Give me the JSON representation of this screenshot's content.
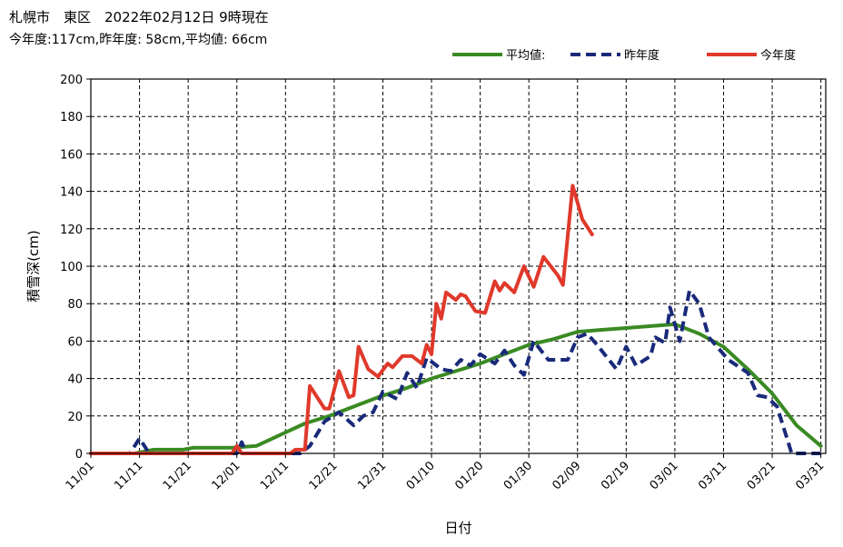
{
  "header": {
    "title": "札幌市　東区　2022年02月12日 9時現在",
    "summary": "今年度:117cm,昨年度: 58cm,平均値: 66cm"
  },
  "chart_data": {
    "type": "line",
    "title": "札幌市　東区　2022年02月12日 9時現在",
    "xlabel": "日付",
    "ylabel": "積雪深(cm)",
    "ylim": [
      0,
      200
    ],
    "yticks": [
      0,
      20,
      40,
      60,
      80,
      100,
      120,
      140,
      160,
      180,
      200
    ],
    "xlim": [
      "11/01",
      "04/01"
    ],
    "xticks": [
      "11/01",
      "11/11",
      "11/21",
      "12/01",
      "12/11",
      "12/21",
      "12/31",
      "01/10",
      "01/20",
      "01/30",
      "02/09",
      "02/19",
      "03/01",
      "03/11",
      "03/21",
      "03/31"
    ],
    "grid": true,
    "legend_position": "top-right",
    "series": [
      {
        "name": "平均値:",
        "color": "#3a8a23",
        "style": "solid",
        "points": [
          [
            "11/01",
            0
          ],
          [
            "11/10",
            0
          ],
          [
            "11/14",
            2
          ],
          [
            "11/20",
            2
          ],
          [
            "11/22",
            3
          ],
          [
            "11/30",
            3
          ],
          [
            "12/05",
            4
          ],
          [
            "12/10",
            10
          ],
          [
            "12/15",
            16
          ],
          [
            "12/20",
            20
          ],
          [
            "12/25",
            25
          ],
          [
            "12/30",
            30
          ],
          [
            "01/05",
            35
          ],
          [
            "01/10",
            40
          ],
          [
            "01/15",
            44
          ],
          [
            "01/20",
            48
          ],
          [
            "01/25",
            53
          ],
          [
            "01/30",
            58
          ],
          [
            "02/04",
            61
          ],
          [
            "02/09",
            65
          ],
          [
            "02/14",
            66
          ],
          [
            "02/19",
            67
          ],
          [
            "02/24",
            68
          ],
          [
            "03/01",
            69
          ],
          [
            "03/06",
            64
          ],
          [
            "03/11",
            57
          ],
          [
            "03/16",
            45
          ],
          [
            "03/21",
            32
          ],
          [
            "03/26",
            15
          ],
          [
            "03/31",
            4
          ]
        ]
      },
      {
        "name": "昨年度",
        "color": "#1a2a7a",
        "style": "dashed",
        "points": [
          [
            "11/01",
            0
          ],
          [
            "11/09",
            0
          ],
          [
            "11/11",
            8
          ],
          [
            "11/13",
            0
          ],
          [
            "12/01",
            0
          ],
          [
            "12/02",
            6
          ],
          [
            "12/03",
            0
          ],
          [
            "12/14",
            0
          ],
          [
            "12/16",
            4
          ],
          [
            "12/19",
            17
          ],
          [
            "12/22",
            22
          ],
          [
            "12/25",
            15
          ],
          [
            "12/27",
            20
          ],
          [
            "12/29",
            22
          ],
          [
            "12/31",
            33
          ],
          [
            "01/03",
            29
          ],
          [
            "01/05",
            43
          ],
          [
            "01/07",
            35
          ],
          [
            "01/09",
            51
          ],
          [
            "01/12",
            45
          ],
          [
            "01/14",
            44
          ],
          [
            "01/16",
            50
          ],
          [
            "01/18",
            47
          ],
          [
            "01/20",
            53
          ],
          [
            "01/23",
            48
          ],
          [
            "01/25",
            55
          ],
          [
            "01/27",
            47
          ],
          [
            "01/29",
            42
          ],
          [
            "01/31",
            60
          ],
          [
            "02/03",
            50
          ],
          [
            "02/07",
            50
          ],
          [
            "02/09",
            62
          ],
          [
            "02/11",
            64
          ],
          [
            "02/13",
            58
          ],
          [
            "02/17",
            45
          ],
          [
            "02/19",
            57
          ],
          [
            "02/21",
            47
          ],
          [
            "02/24",
            52
          ],
          [
            "02/25",
            62
          ],
          [
            "02/27",
            59
          ],
          [
            "02/28",
            78
          ],
          [
            "03/02",
            60
          ],
          [
            "03/04",
            87
          ],
          [
            "03/06",
            80
          ],
          [
            "03/08",
            62
          ],
          [
            "03/12",
            50
          ],
          [
            "03/16",
            43
          ],
          [
            "03/18",
            31
          ],
          [
            "03/20",
            30
          ],
          [
            "03/22",
            25
          ],
          [
            "03/25",
            0
          ],
          [
            "03/31",
            0
          ]
        ]
      },
      {
        "name": "今年度",
        "color": "#e0392b",
        "style": "solid",
        "points": [
          [
            "11/01",
            0
          ],
          [
            "11/30",
            0
          ],
          [
            "12/01",
            4
          ],
          [
            "12/02",
            0
          ],
          [
            "12/12",
            0
          ],
          [
            "12/13",
            2
          ],
          [
            "12/15",
            2
          ],
          [
            "12/16",
            36
          ],
          [
            "12/19",
            24
          ],
          [
            "12/20",
            24
          ],
          [
            "12/22",
            44
          ],
          [
            "12/24",
            30
          ],
          [
            "12/25",
            31
          ],
          [
            "12/26",
            57
          ],
          [
            "12/28",
            45
          ],
          [
            "12/30",
            41
          ],
          [
            "01/01",
            48
          ],
          [
            "01/02",
            46
          ],
          [
            "01/04",
            52
          ],
          [
            "01/06",
            52
          ],
          [
            "01/08",
            48
          ],
          [
            "01/09",
            58
          ],
          [
            "01/10",
            53
          ],
          [
            "01/11",
            80
          ],
          [
            "01/12",
            72
          ],
          [
            "01/13",
            86
          ],
          [
            "01/14",
            84
          ],
          [
            "01/15",
            82
          ],
          [
            "01/16",
            85
          ],
          [
            "01/17",
            84
          ],
          [
            "01/19",
            76
          ],
          [
            "01/21",
            75
          ],
          [
            "01/23",
            92
          ],
          [
            "01/24",
            87
          ],
          [
            "01/25",
            91
          ],
          [
            "01/27",
            86
          ],
          [
            "01/29",
            100
          ],
          [
            "01/31",
            89
          ],
          [
            "02/02",
            105
          ],
          [
            "02/05",
            95
          ],
          [
            "02/06",
            90
          ],
          [
            "02/08",
            143
          ],
          [
            "02/10",
            125
          ],
          [
            "02/12",
            117
          ]
        ]
      }
    ]
  }
}
